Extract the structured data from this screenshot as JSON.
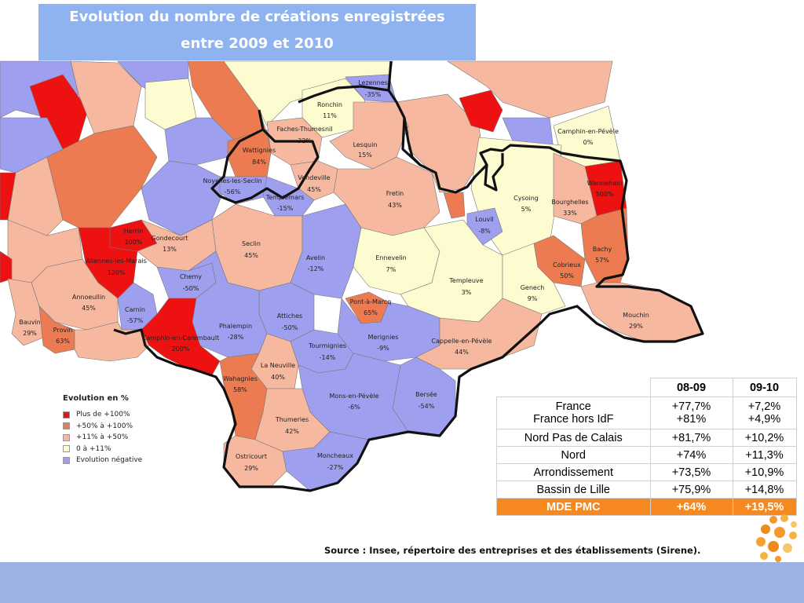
{
  "title": {
    "line1": "Evolution du nombre de créations enregistrées",
    "line2": "entre 2009 et 2010"
  },
  "map": {
    "colors": {
      "plus_100": "#ee1111",
      "plus_50_100": "#ed7b52",
      "plus_11_50": "#f7b8a0",
      "zero_11": "#fdfbd0",
      "negative": "#9f9ff0",
      "border": "#111111"
    },
    "communes": [
      {
        "name": "Lezennes",
        "value": "-35%",
        "class": "negative"
      },
      {
        "name": "Ronchin",
        "value": "11%",
        "class": "zero_11"
      },
      {
        "name": "Faches-Thumesnil",
        "value": "32%",
        "class": "plus_11_50"
      },
      {
        "name": "Lesquin",
        "value": "15%",
        "class": "plus_11_50"
      },
      {
        "name": "Wattignies",
        "value": "84%",
        "class": "plus_50_100"
      },
      {
        "name": "Vendeville",
        "value": "45%",
        "class": "plus_11_50"
      },
      {
        "name": "Noyelles-les-Seclin",
        "value": "-56%",
        "class": "negative"
      },
      {
        "name": "Templemars",
        "value": "-15%",
        "class": "negative"
      },
      {
        "name": "Fretin",
        "value": "43%",
        "class": "plus_11_50"
      },
      {
        "name": "Camphin-en-Pévèle",
        "value": "0%",
        "class": "zero_11"
      },
      {
        "name": "Wannehain",
        "value": "500%",
        "class": "plus_100"
      },
      {
        "name": "Cysoing",
        "value": "5%",
        "class": "zero_11"
      },
      {
        "name": "Bourghelles",
        "value": "33%",
        "class": "plus_11_50"
      },
      {
        "name": "Louvil",
        "value": "-8%",
        "class": "negative"
      },
      {
        "name": "Herrin",
        "value": "100%",
        "class": "plus_100"
      },
      {
        "name": "Gondecourt",
        "value": "13%",
        "class": "plus_11_50"
      },
      {
        "name": "Seclin",
        "value": "45%",
        "class": "plus_11_50"
      },
      {
        "name": "Avelin",
        "value": "-12%",
        "class": "negative"
      },
      {
        "name": "Ennevelin",
        "value": "7%",
        "class": "zero_11"
      },
      {
        "name": "Bachy",
        "value": "57%",
        "class": "plus_50_100"
      },
      {
        "name": "Cobrieux",
        "value": "50%",
        "class": "plus_50_100"
      },
      {
        "name": "Allennes-les-Marais",
        "value": "120%",
        "class": "plus_100"
      },
      {
        "name": "Chemy",
        "value": "-50%",
        "class": "negative"
      },
      {
        "name": "Templeuve",
        "value": "3%",
        "class": "zero_11"
      },
      {
        "name": "Genech",
        "value": "9%",
        "class": "zero_11"
      },
      {
        "name": "Annoeullin",
        "value": "45%",
        "class": "plus_11_50"
      },
      {
        "name": "Pont-à-Marcq",
        "value": "65%",
        "class": "plus_50_100"
      },
      {
        "name": "Mouchin",
        "value": "29%",
        "class": "plus_11_50"
      },
      {
        "name": "Carnin",
        "value": "-57%",
        "class": "negative"
      },
      {
        "name": "Attiches",
        "value": "-50%",
        "class": "negative"
      },
      {
        "name": "Bauvin",
        "value": "29%",
        "class": "plus_11_50"
      },
      {
        "name": "Provin",
        "value": "63%",
        "class": "plus_50_100"
      },
      {
        "name": "Phalempin",
        "value": "-28%",
        "class": "negative"
      },
      {
        "name": "Merignies",
        "value": "-9%",
        "class": "negative"
      },
      {
        "name": "Camphin-en-Carembault",
        "value": "200%",
        "class": "plus_100"
      },
      {
        "name": "Tourmignies",
        "value": "-14%",
        "class": "negative"
      },
      {
        "name": "Cappelle-en-Pévèle",
        "value": "44%",
        "class": "plus_11_50"
      },
      {
        "name": "La Neuville",
        "value": "40%",
        "class": "plus_11_50"
      },
      {
        "name": "Wahagnies",
        "value": "58%",
        "class": "plus_50_100"
      },
      {
        "name": "Bersée",
        "value": "-54%",
        "class": "negative"
      },
      {
        "name": "Mons-en-Pévèle",
        "value": "-6%",
        "class": "negative"
      },
      {
        "name": "Thumeries",
        "value": "42%",
        "class": "plus_11_50"
      },
      {
        "name": "Ostricourt",
        "value": "29%",
        "class": "plus_11_50"
      },
      {
        "name": "Moncheaux",
        "value": "-27%",
        "class": "negative"
      }
    ]
  },
  "legend": {
    "title": "Evolution en %",
    "items": [
      {
        "label": "Plus de +100%",
        "class": "plus_100"
      },
      {
        "label": "+50% à +100%",
        "class": "plus_50_100"
      },
      {
        "label": "+11% à  +50%",
        "class": "plus_11_50"
      },
      {
        "label": "0   à  +11%",
        "class": "zero_11"
      },
      {
        "label": "Evolution négative",
        "class": "negative"
      }
    ]
  },
  "table": {
    "headers": [
      "",
      "08-09",
      "09-10"
    ],
    "rows": [
      {
        "label": "France",
        "label2": "France hors IdF",
        "v1": "+77,7%",
        "v1b": "+81%",
        "v2": "+7,2%",
        "v2b": "+4,9%"
      },
      {
        "label": "Nord Pas de Calais",
        "v1": "+81,7%",
        "v2": "+10,2%"
      },
      {
        "label": "Nord",
        "v1": "+74%",
        "v2": "+11,3%"
      },
      {
        "label": "Arrondissement",
        "v1": "+73,5%",
        "v2": "+10,9%"
      },
      {
        "label": "Bassin de Lille",
        "v1": "+75,9%",
        "v2": "+14,8%"
      },
      {
        "label": "MDE PMC",
        "v1": "+64%",
        "v2": "+19,5%"
      }
    ],
    "highlight_color": "#f5881f"
  },
  "source": "Source : Insee, répertoire des entreprises et des établissements (Sirene).",
  "footer_band_color": "#9db2e0"
}
